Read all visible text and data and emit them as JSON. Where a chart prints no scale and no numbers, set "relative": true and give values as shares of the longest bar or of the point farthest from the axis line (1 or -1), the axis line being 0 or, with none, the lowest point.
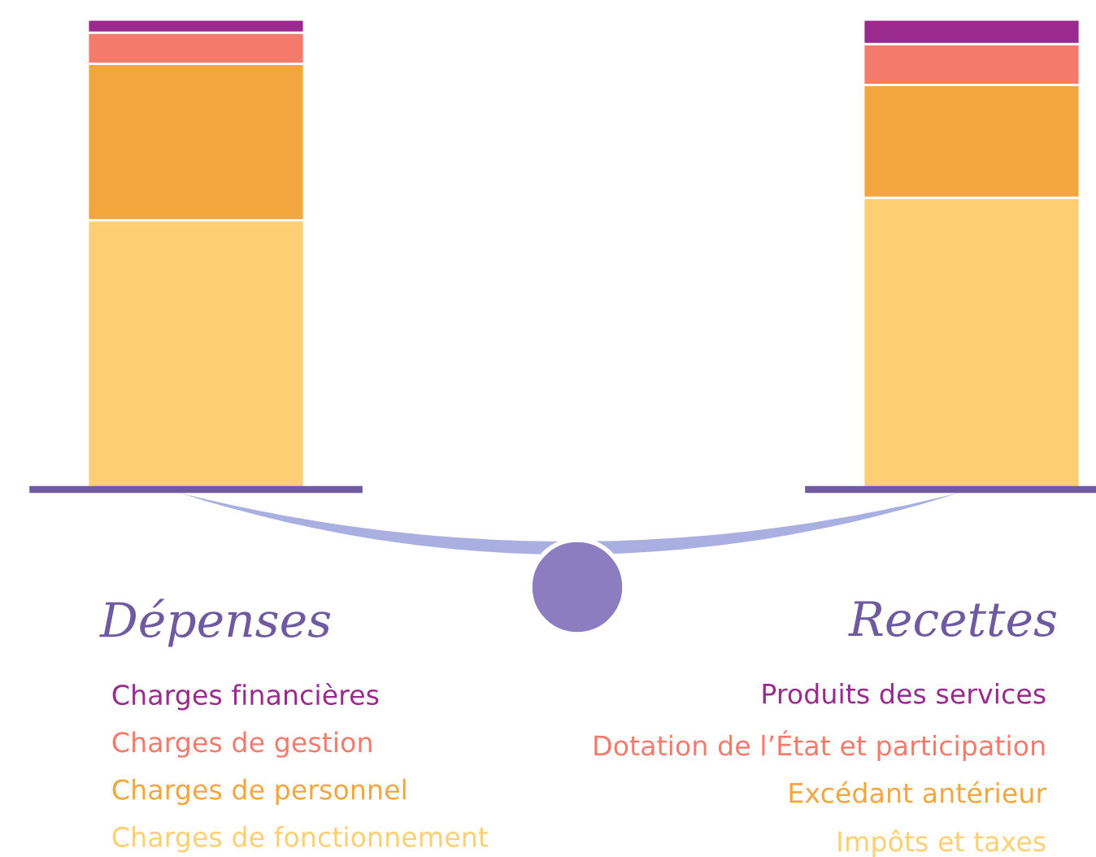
{
  "chart_data": [
    {
      "type": "bar",
      "stacked": true,
      "relative": true,
      "title": "Dépenses",
      "categories": [
        null
      ],
      "series": [
        {
          "name": "Charges de fonctionnement",
          "color": "#fdcf72",
          "values": [
            0.573
          ]
        },
        {
          "name": "Charges de personnel",
          "color": "#f3a63d",
          "values": [
            0.333
          ]
        },
        {
          "name": "Charges de gestion",
          "color": "#f47b6b",
          "values": [
            0.066
          ]
        },
        {
          "name": "Charges financières",
          "color": "#9b2a8e",
          "values": [
            0.028
          ]
        }
      ]
    },
    {
      "type": "bar",
      "stacked": true,
      "relative": true,
      "title": "Recettes",
      "categories": [
        null
      ],
      "series": [
        {
          "name": "Impôts et taxes",
          "color": "#fdcf72",
          "values": [
            0.621
          ]
        },
        {
          "name": "Excédant antérieur",
          "color": "#f3a63d",
          "values": [
            0.24
          ]
        },
        {
          "name": "Dotation de l’État et participation",
          "color": "#f47b6b",
          "values": [
            0.087
          ]
        },
        {
          "name": "Produits des services",
          "color": "#9b2a8e",
          "values": [
            0.052
          ]
        }
      ]
    }
  ]
}
